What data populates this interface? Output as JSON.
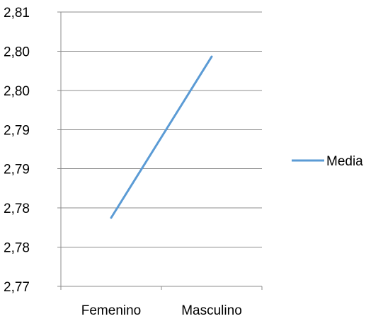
{
  "chart_data": {
    "type": "line",
    "categories": [
      "Femenino",
      "Masculino"
    ],
    "series": [
      {
        "name": "Media",
        "values": [
          2.78,
          2.8035
        ],
        "color": "#5B9BD5"
      }
    ],
    "ylim": [
      2.77,
      2.81
    ],
    "y_tick_labels": [
      "2,77",
      "2,78",
      "2,78",
      "2,79",
      "2,79",
      "2,80",
      "2,80",
      "2,81"
    ],
    "grid": true,
    "legend": "right",
    "title": "",
    "xlabel": "",
    "ylabel": ""
  }
}
